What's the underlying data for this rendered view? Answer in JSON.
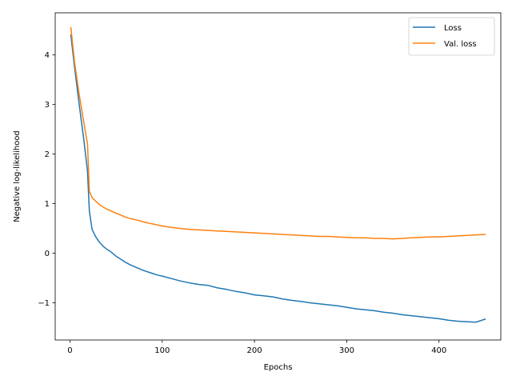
{
  "chart_data": {
    "type": "line",
    "title": "",
    "xlabel": "Epochs",
    "ylabel": "Negative log-likelihood",
    "xlim": [
      -16,
      467
    ],
    "ylim": [
      -1.75,
      4.85
    ],
    "x_ticks": [
      0,
      100,
      200,
      300,
      400
    ],
    "y_ticks": [
      -1,
      0,
      1,
      2,
      3,
      4
    ],
    "x_tick_labels": [
      "0",
      "100",
      "200",
      "300",
      "400"
    ],
    "y_tick_labels": [
      "−1",
      "0",
      "1",
      "2",
      "3",
      "4"
    ],
    "grid": false,
    "legend_position": "top-right",
    "series": [
      {
        "name": "Loss",
        "color": "#1f77b4",
        "x": [
          1,
          5,
          10,
          15,
          19,
          21,
          24,
          28,
          32,
          36,
          40,
          45,
          50,
          55,
          60,
          65,
          70,
          75,
          80,
          85,
          90,
          95,
          100,
          110,
          120,
          130,
          140,
          150,
          160,
          170,
          180,
          190,
          200,
          210,
          220,
          230,
          240,
          250,
          260,
          270,
          280,
          290,
          300,
          310,
          320,
          330,
          340,
          350,
          360,
          370,
          380,
          390,
          400,
          410,
          420,
          430,
          440,
          450
        ],
        "y": [
          4.4,
          3.75,
          3.0,
          2.3,
          1.65,
          0.85,
          0.48,
          0.33,
          0.22,
          0.14,
          0.08,
          0.02,
          -0.06,
          -0.12,
          -0.18,
          -0.23,
          -0.27,
          -0.31,
          -0.35,
          -0.38,
          -0.41,
          -0.44,
          -0.46,
          -0.51,
          -0.56,
          -0.6,
          -0.63,
          -0.65,
          -0.7,
          -0.73,
          -0.77,
          -0.8,
          -0.84,
          -0.86,
          -0.88,
          -0.92,
          -0.95,
          -0.97,
          -1.0,
          -1.02,
          -1.04,
          -1.06,
          -1.09,
          -1.12,
          -1.14,
          -1.16,
          -1.19,
          -1.21,
          -1.24,
          -1.26,
          -1.28,
          -1.3,
          -1.32,
          -1.35,
          -1.37,
          -1.38,
          -1.39,
          -1.33
        ]
      },
      {
        "name": "Val. loss",
        "color": "#ff7f0e",
        "x": [
          1,
          5,
          10,
          15,
          19,
          21,
          24,
          28,
          32,
          36,
          40,
          45,
          50,
          55,
          60,
          65,
          70,
          75,
          80,
          85,
          90,
          95,
          100,
          110,
          120,
          130,
          140,
          150,
          160,
          170,
          180,
          190,
          200,
          210,
          220,
          230,
          240,
          250,
          260,
          270,
          280,
          290,
          300,
          310,
          320,
          330,
          340,
          350,
          360,
          370,
          380,
          390,
          400,
          410,
          420,
          430,
          440,
          450
        ],
        "y": [
          4.55,
          3.85,
          3.2,
          2.65,
          2.2,
          1.25,
          1.12,
          1.05,
          0.98,
          0.93,
          0.89,
          0.85,
          0.81,
          0.77,
          0.73,
          0.7,
          0.68,
          0.66,
          0.63,
          0.61,
          0.59,
          0.57,
          0.55,
          0.52,
          0.5,
          0.48,
          0.47,
          0.46,
          0.45,
          0.44,
          0.43,
          0.42,
          0.41,
          0.4,
          0.39,
          0.38,
          0.37,
          0.36,
          0.35,
          0.34,
          0.34,
          0.33,
          0.32,
          0.31,
          0.31,
          0.3,
          0.3,
          0.29,
          0.3,
          0.31,
          0.32,
          0.33,
          0.33,
          0.34,
          0.35,
          0.36,
          0.37,
          0.38
        ]
      }
    ]
  }
}
